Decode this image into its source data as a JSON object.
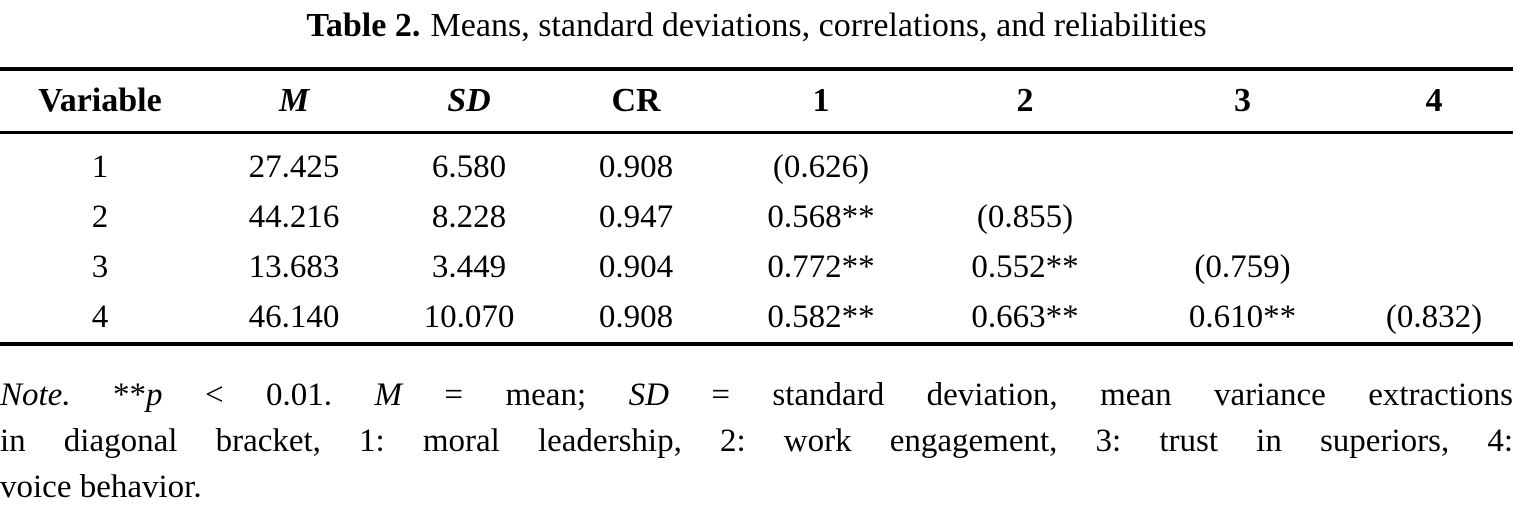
{
  "caption": {
    "label": "Table 2.",
    "text": "Means, standard deviations, correlations, and reliabilities"
  },
  "table": {
    "columns": [
      {
        "label": "Variable"
      },
      {
        "label": "M"
      },
      {
        "label": "SD"
      },
      {
        "label": "CR"
      },
      {
        "label": "1"
      },
      {
        "label": "2"
      },
      {
        "label": "3"
      },
      {
        "label": "4"
      }
    ],
    "rows": [
      [
        "1",
        "27.425",
        "6.580",
        "0.908",
        "(0.626)",
        "",
        "",
        ""
      ],
      [
        "2",
        "44.216",
        "8.228",
        "0.947",
        "0.568**",
        "(0.855)",
        "",
        ""
      ],
      [
        "3",
        "13.683",
        "3.449",
        "0.904",
        "0.772**",
        "0.552**",
        "(0.759)",
        ""
      ],
      [
        "4",
        "46.140",
        "10.070",
        "0.908",
        "0.582**",
        "0.663**",
        "0.610**",
        "(0.832)"
      ]
    ]
  },
  "note": {
    "lines": [
      {
        "segments": [
          {
            "text": "Note.",
            "italic": true
          },
          {
            "text": " **",
            "italic": false
          },
          {
            "text": "p",
            "italic": true
          },
          {
            "text": " < 0.01. ",
            "italic": false
          },
          {
            "text": "M",
            "italic": true
          },
          {
            "text": " = mean; ",
            "italic": false
          },
          {
            "text": "SD",
            "italic": true
          },
          {
            "text": " = standard deviation, mean variance extractions",
            "italic": false
          }
        ]
      },
      {
        "segments": [
          {
            "text": "in diagonal bracket, 1: moral leadership, 2: work engagement, 3: trust in superiors, 4:",
            "italic": false
          }
        ]
      },
      {
        "segments": [
          {
            "text": "voice behavior.",
            "italic": false
          }
        ]
      }
    ]
  },
  "colors": {
    "text": "#000000",
    "background": "#ffffff",
    "rule": "#000000"
  }
}
